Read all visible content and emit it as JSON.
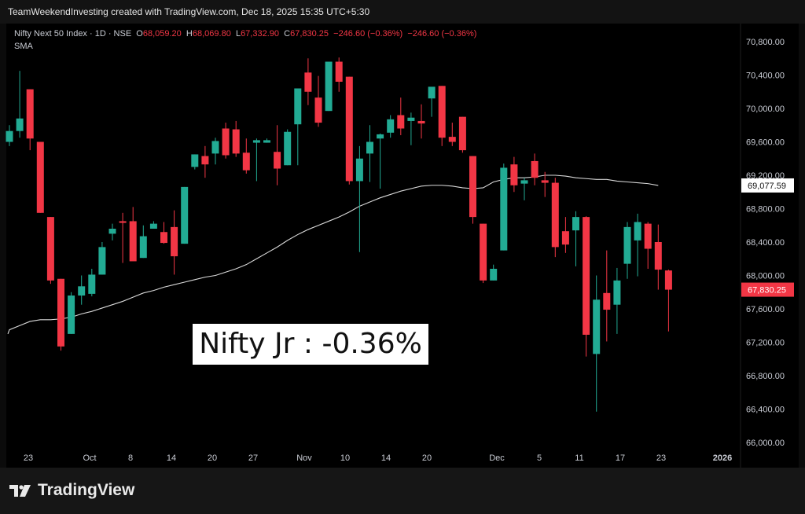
{
  "header": {
    "title": "TeamWeekendInvesting created with TradingView.com, Dec 18, 2025 15:35 UTC+5:30"
  },
  "legend": {
    "symbol": "Nifty Next 50 Index · 1D · NSE",
    "o_label": "O",
    "o_value": "68,059.20",
    "h_label": "H",
    "h_value": "68,069.80",
    "l_label": "L",
    "l_value": "67,332.90",
    "c_label": "C",
    "c_value": "67,830.25",
    "change": "−246.60 (−0.36%)",
    "change2": "−246.60 (−0.36%)",
    "indicator": "SMA"
  },
  "annotation": "Nifty Jr : -0.36%",
  "footer": {
    "logo_text": "TradingView"
  },
  "colors": {
    "up": "#22ab94",
    "down": "#f23645",
    "sma": "#d9d9d9",
    "background": "#000000"
  },
  "chart_data": {
    "type": "candlestick",
    "ylim": [
      66000,
      71000
    ],
    "y_ticks": [
      "70,800.00",
      "70,400.00",
      "70,000.00",
      "69,600.00",
      "69,200.00",
      "68,800.00",
      "68,400.00",
      "68,000.00",
      "67,600.00",
      "67,200.00",
      "66,800.00",
      "66,400.00",
      "66,000.00"
    ],
    "x_labels": [
      "23",
      "Oct",
      "8",
      "14",
      "20",
      "27",
      "Nov",
      "10",
      "14",
      "20",
      "Dec",
      "5",
      "11",
      "17",
      "23",
      "2026"
    ],
    "price_label": "67,830.25",
    "sma_label": "69,077.59",
    "candles": [
      {
        "o": 69600,
        "h": 69800,
        "l": 69550,
        "c": 69730
      },
      {
        "o": 69730,
        "h": 70450,
        "l": 69650,
        "c": 69880
      },
      {
        "o": 70230,
        "h": 70230,
        "l": 69500,
        "c": 69640
      },
      {
        "o": 69600,
        "h": 69600,
        "l": 68750,
        "c": 68750
      },
      {
        "o": 68700,
        "h": 68700,
        "l": 67900,
        "c": 67940
      },
      {
        "o": 67960,
        "h": 67960,
        "l": 67100,
        "c": 67150
      },
      {
        "o": 67300,
        "h": 67800,
        "l": 67300,
        "c": 67760
      },
      {
        "o": 67760,
        "h": 68000,
        "l": 67650,
        "c": 67870
      },
      {
        "o": 67780,
        "h": 68080,
        "l": 67750,
        "c": 68010
      },
      {
        "o": 68010,
        "h": 68400,
        "l": 68010,
        "c": 68340
      },
      {
        "o": 68500,
        "h": 68620,
        "l": 68420,
        "c": 68560
      },
      {
        "o": 68650,
        "h": 68750,
        "l": 68150,
        "c": 68630
      },
      {
        "o": 68650,
        "h": 68820,
        "l": 68200,
        "c": 68170
      },
      {
        "o": 68210,
        "h": 68600,
        "l": 68210,
        "c": 68470
      },
      {
        "o": 68560,
        "h": 68650,
        "l": 68560,
        "c": 68620
      },
      {
        "o": 68520,
        "h": 68640,
        "l": 68380,
        "c": 68390
      },
      {
        "o": 68580,
        "h": 68780,
        "l": 68010,
        "c": 68230
      },
      {
        "o": 68380,
        "h": 69060,
        "l": 68380,
        "c": 69060
      },
      {
        "o": 69300,
        "h": 69450,
        "l": 69270,
        "c": 69450
      },
      {
        "o": 69430,
        "h": 69550,
        "l": 69170,
        "c": 69330
      },
      {
        "o": 69460,
        "h": 69650,
        "l": 69330,
        "c": 69610
      },
      {
        "o": 69760,
        "h": 69830,
        "l": 69400,
        "c": 69440
      },
      {
        "o": 69750,
        "h": 69850,
        "l": 69420,
        "c": 69460
      },
      {
        "o": 69470,
        "h": 69640,
        "l": 69220,
        "c": 69260
      },
      {
        "o": 69590,
        "h": 69640,
        "l": 69130,
        "c": 69620
      },
      {
        "o": 69590,
        "h": 69640,
        "l": 69590,
        "c": 69620
      },
      {
        "o": 69480,
        "h": 69800,
        "l": 69080,
        "c": 69280
      },
      {
        "o": 69320,
        "h": 69750,
        "l": 69320,
        "c": 69720
      },
      {
        "o": 69810,
        "h": 70230,
        "l": 69320,
        "c": 70240
      },
      {
        "o": 70430,
        "h": 70600,
        "l": 70040,
        "c": 70200
      },
      {
        "o": 70130,
        "h": 70390,
        "l": 69780,
        "c": 69830
      },
      {
        "o": 69970,
        "h": 70510,
        "l": 69970,
        "c": 70560
      },
      {
        "o": 70560,
        "h": 70610,
        "l": 70200,
        "c": 70320
      },
      {
        "o": 70380,
        "h": 70380,
        "l": 69090,
        "c": 69130
      },
      {
        "o": 69130,
        "h": 69550,
        "l": 68280,
        "c": 69400
      },
      {
        "o": 69460,
        "h": 69800,
        "l": 69120,
        "c": 69600
      },
      {
        "o": 69640,
        "h": 69700,
        "l": 69040,
        "c": 69690
      },
      {
        "o": 69710,
        "h": 69920,
        "l": 69650,
        "c": 69870
      },
      {
        "o": 69920,
        "h": 70130,
        "l": 69680,
        "c": 69760
      },
      {
        "o": 69850,
        "h": 69950,
        "l": 69560,
        "c": 69890
      },
      {
        "o": 69850,
        "h": 70050,
        "l": 69640,
        "c": 69820
      },
      {
        "o": 70120,
        "h": 70230,
        "l": 69900,
        "c": 70260
      },
      {
        "o": 70270,
        "h": 70270,
        "l": 69550,
        "c": 69650
      },
      {
        "o": 69660,
        "h": 69830,
        "l": 69550,
        "c": 69600
      },
      {
        "o": 69900,
        "h": 69900,
        "l": 69470,
        "c": 69500
      },
      {
        "o": 69430,
        "h": 69430,
        "l": 68620,
        "c": 68700
      },
      {
        "o": 68620,
        "h": 68620,
        "l": 67910,
        "c": 67940
      },
      {
        "o": 67940,
        "h": 68130,
        "l": 67940,
        "c": 68080
      },
      {
        "o": 68300,
        "h": 69340,
        "l": 68300,
        "c": 69290
      },
      {
        "o": 69330,
        "h": 69420,
        "l": 69000,
        "c": 69080
      },
      {
        "o": 69100,
        "h": 69170,
        "l": 68900,
        "c": 69140
      },
      {
        "o": 69370,
        "h": 69460,
        "l": 69080,
        "c": 69170
      },
      {
        "o": 69140,
        "h": 69240,
        "l": 68940,
        "c": 69110
      },
      {
        "o": 69110,
        "h": 69170,
        "l": 68220,
        "c": 68340
      },
      {
        "o": 68530,
        "h": 68700,
        "l": 68270,
        "c": 68370
      },
      {
        "o": 68540,
        "h": 68770,
        "l": 68110,
        "c": 68700
      },
      {
        "o": 68700,
        "h": 68710,
        "l": 67030,
        "c": 67290
      },
      {
        "o": 67060,
        "h": 68000,
        "l": 66370,
        "c": 67710
      },
      {
        "o": 67790,
        "h": 68300,
        "l": 67210,
        "c": 67590
      },
      {
        "o": 67650,
        "h": 68090,
        "l": 67300,
        "c": 67940
      },
      {
        "o": 68140,
        "h": 68640,
        "l": 67960,
        "c": 68580
      },
      {
        "o": 68420,
        "h": 68740,
        "l": 67990,
        "c": 68640
      },
      {
        "o": 68620,
        "h": 68640,
        "l": 68080,
        "c": 68320
      },
      {
        "o": 68400,
        "h": 68610,
        "l": 67830,
        "c": 68070
      },
      {
        "o": 68060,
        "h": 68070,
        "l": 67330,
        "c": 67830
      }
    ],
    "sma": [
      67300,
      67350,
      67400,
      67450,
      67470,
      67470,
      67480,
      67500,
      67540,
      67570,
      67610,
      67650,
      67690,
      67740,
      67790,
      67820,
      67860,
      67890,
      67920,
      67950,
      67980,
      68000,
      68040,
      68080,
      68130,
      68200,
      68270,
      68340,
      68420,
      68490,
      68550,
      68600,
      68650,
      68700,
      68760,
      68830,
      68880,
      68930,
      68970,
      69010,
      69040,
      69070,
      69080,
      69080,
      69070,
      69050,
      69040,
      69050,
      69120,
      69150,
      69170,
      69170,
      69180,
      69200,
      69200,
      69190,
      69170,
      69160,
      69150,
      69150,
      69130,
      69120,
      69110,
      69100,
      69078
    ]
  }
}
